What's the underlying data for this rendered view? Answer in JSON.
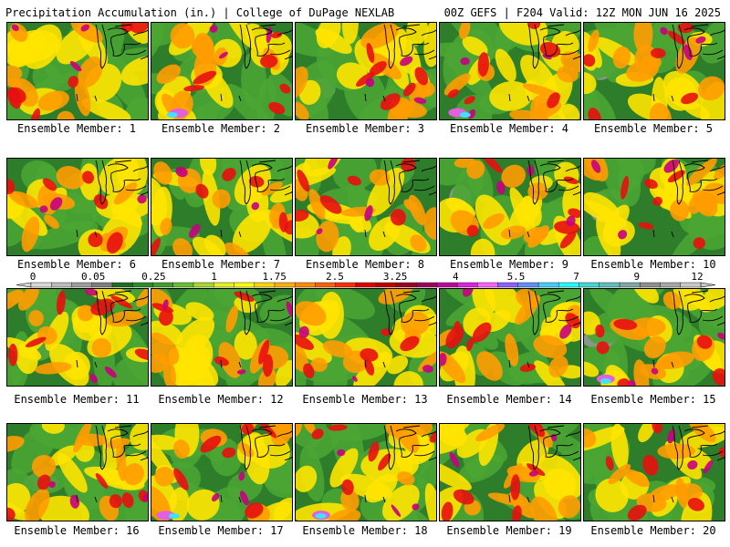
{
  "header": {
    "title_left": "Precipitation Accumulation (in.) | College of DuPage NEXLAB",
    "title_right": "00Z GEFS | F204 Valid: 12Z MON JUN 16 2025"
  },
  "panel_label_prefix": "Ensemble Member: ",
  "members": [
    {
      "label": "Ensemble Member: 1"
    },
    {
      "label": "Ensemble Member: 2"
    },
    {
      "label": "Ensemble Member: 3"
    },
    {
      "label": "Ensemble Member: 4"
    },
    {
      "label": "Ensemble Member: 5"
    },
    {
      "label": "Ensemble Member: 6"
    },
    {
      "label": "Ensemble Member: 7"
    },
    {
      "label": "Ensemble Member: 8"
    },
    {
      "label": "Ensemble Member: 9"
    },
    {
      "label": "Ensemble Member: 10"
    },
    {
      "label": "Ensemble Member: 11"
    },
    {
      "label": "Ensemble Member: 12"
    },
    {
      "label": "Ensemble Member: 13"
    },
    {
      "label": "Ensemble Member: 14"
    },
    {
      "label": "Ensemble Member: 15"
    },
    {
      "label": "Ensemble Member: 16"
    },
    {
      "label": "Ensemble Member: 17"
    },
    {
      "label": "Ensemble Member: 18"
    },
    {
      "label": "Ensemble Member: 19"
    },
    {
      "label": "Ensemble Member: 20"
    }
  ],
  "colorbar": {
    "tick_labels": [
      "0",
      "0.05",
      "0.25",
      "1",
      "1.75",
      "2.5",
      "3.25",
      "4",
      "5.5",
      "7",
      "9",
      "12"
    ],
    "colors": [
      "#d8d8d8",
      "#bdbdbd",
      "#9e9e9e",
      "#7f7f7f",
      "#1f6e1f",
      "#2e8b2e",
      "#43a02e",
      "#6cbf2c",
      "#a8d82a",
      "#e8f020",
      "#ffff00",
      "#ffd700",
      "#ffb000",
      "#ff8c00",
      "#ff6000",
      "#ff3000",
      "#e00000",
      "#c00000",
      "#a00020",
      "#a00060",
      "#c000a0",
      "#e020e0",
      "#ff60ff",
      "#9060ff",
      "#6090ff",
      "#40d0ff",
      "#20ffff",
      "#40d8d8",
      "#60c0c0",
      "#80a8a8",
      "#909090",
      "#a8a8a8",
      "#c8c8c8"
    ]
  },
  "scale_colors": {
    "gray": "#9a9a9a",
    "dark_green": "#2e7d2a",
    "green": "#4aa533",
    "yellow": "#ffe400",
    "orange": "#ff9c00",
    "red": "#e81010",
    "magenta": "#c80080",
    "pink": "#e060e0",
    "cyan": "#40e0ff"
  }
}
